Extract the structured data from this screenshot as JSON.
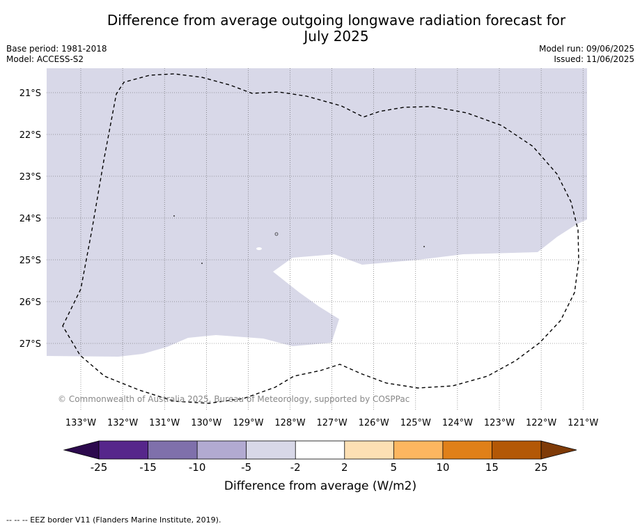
{
  "title_line1": "Difference from average outgoing longwave radiation forecast for",
  "title_line2": "July 2025",
  "base_period": "Base period: 1981-2018",
  "model": "Model: ACCESS-S2",
  "model_run": "Model run: 09/06/2025",
  "issued": "Issued: 11/06/2025",
  "copyright": "© Commonwealth of Australia 2025, Bureau of Meteorology, supported by COSPPac",
  "lon_ticks": [
    "133°W",
    "132°W",
    "131°W",
    "130°W",
    "129°W",
    "128°W",
    "127°W",
    "126°W",
    "125°W",
    "124°W",
    "123°W",
    "122°W",
    "121°W"
  ],
  "lat_ticks": [
    "21°S",
    "22°S",
    "23°S",
    "24°S",
    "25°S",
    "26°S",
    "27°S"
  ],
  "colorbar": {
    "label": "Difference from average (W/m2)",
    "tick_labels": [
      "-25",
      "-15",
      "-10",
      "-5",
      "-2",
      "2",
      "5",
      "10",
      "15",
      "25"
    ],
    "colors": [
      "#2d0a4e",
      "#56268b",
      "#7f70ab",
      "#b2aad1",
      "#d8d8e8",
      "#ffffff",
      "#fde0b4",
      "#fdb660",
      "#e08019",
      "#b35806",
      "#7f3b08"
    ]
  },
  "map_fill_color": "#d8d8e8",
  "footer": "--  --  -- EEZ border V11 (Flanders Marine Institute, 2019)."
}
